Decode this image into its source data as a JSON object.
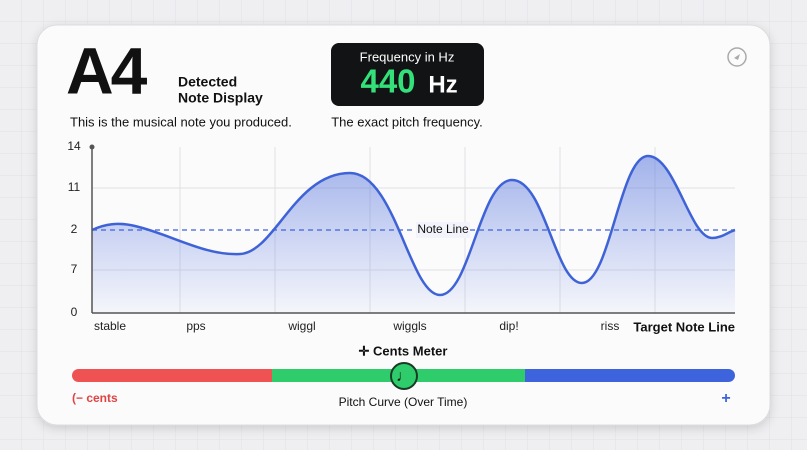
{
  "note": {
    "name": "A4",
    "label_lines": [
      "Detected",
      "Note Display"
    ],
    "caption": "This is the musical note you produced."
  },
  "frequency": {
    "title": "Frequency in Hz",
    "value": "440",
    "unit": "Hz",
    "caption": "The exact pitch frequency."
  },
  "graph": {
    "y_labels": [
      "14",
      "11",
      "2",
      "7",
      "0"
    ],
    "x_labels": [
      "stable",
      "pps",
      "wiggl",
      "wiggls",
      "dip!",
      "riss"
    ],
    "reference_label": "Note Line",
    "legend": "Target Note Line"
  },
  "meter": {
    "title": "✛ Cents Meter",
    "left": "(− cents",
    "center": "Pitch Curve (Over Time)",
    "right": "+",
    "indicator": "♩"
  }
}
